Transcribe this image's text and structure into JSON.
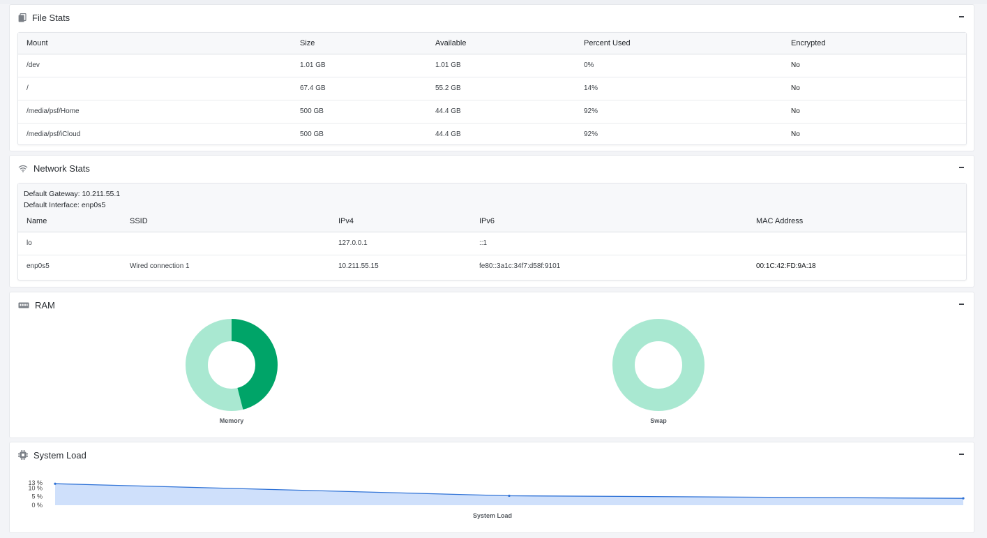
{
  "file_stats": {
    "title": "File Stats",
    "icon": "files-icon",
    "columns": [
      "Mount",
      "Size",
      "Available",
      "Percent Used",
      "Encrypted"
    ],
    "rows": [
      [
        "/dev",
        "1.01 GB",
        "1.01 GB",
        "0%",
        "No"
      ],
      [
        "/",
        "67.4 GB",
        "55.2 GB",
        "14%",
        "No"
      ],
      [
        "/media/psf/Home",
        "500 GB",
        "44.4 GB",
        "92%",
        "No"
      ],
      [
        "/media/psf/iCloud",
        "500 GB",
        "44.4 GB",
        "92%",
        "No"
      ]
    ]
  },
  "network_stats": {
    "title": "Network Stats",
    "icon": "wifi-icon",
    "default_gateway": "Default Gateway: 10.211.55.1",
    "default_interface": "Default Interface: enp0s5",
    "columns": [
      "Name",
      "SSID",
      "IPv4",
      "IPv6",
      "MAC Address"
    ],
    "rows": [
      [
        "lo",
        "",
        "127.0.0.1",
        "::1",
        ""
      ],
      [
        "enp0s5",
        "Wired connection 1",
        "10.211.55.15",
        "fe80::3a1c:34f7:d58f:9101",
        "00:1C:42:FD:9A:18"
      ]
    ]
  },
  "ram": {
    "title": "RAM",
    "icon": "memory-chip-icon",
    "colors": {
      "used": "#00a468",
      "free": "#a9e8d1"
    },
    "memory": {
      "label": "Memory",
      "used_fraction": 0.46
    },
    "swap": {
      "label": "Swap",
      "used_fraction": 0.0
    }
  },
  "system_load": {
    "title": "System Load",
    "icon": "cpu-icon",
    "chart_data": {
      "type": "area",
      "title": "System Load",
      "xlabel": "System Load",
      "ylabel": "",
      "y_ticks": [
        "0 %",
        "5 %",
        "10 %",
        "13 %"
      ],
      "ylim": [
        0,
        13
      ],
      "x": [
        0,
        1,
        2
      ],
      "series": [
        {
          "values": [
            12.5,
            5.5,
            4.0
          ]
        }
      ],
      "grid": false,
      "line_color": "#2f72d6",
      "fill_color": "#cfe0fb"
    }
  }
}
